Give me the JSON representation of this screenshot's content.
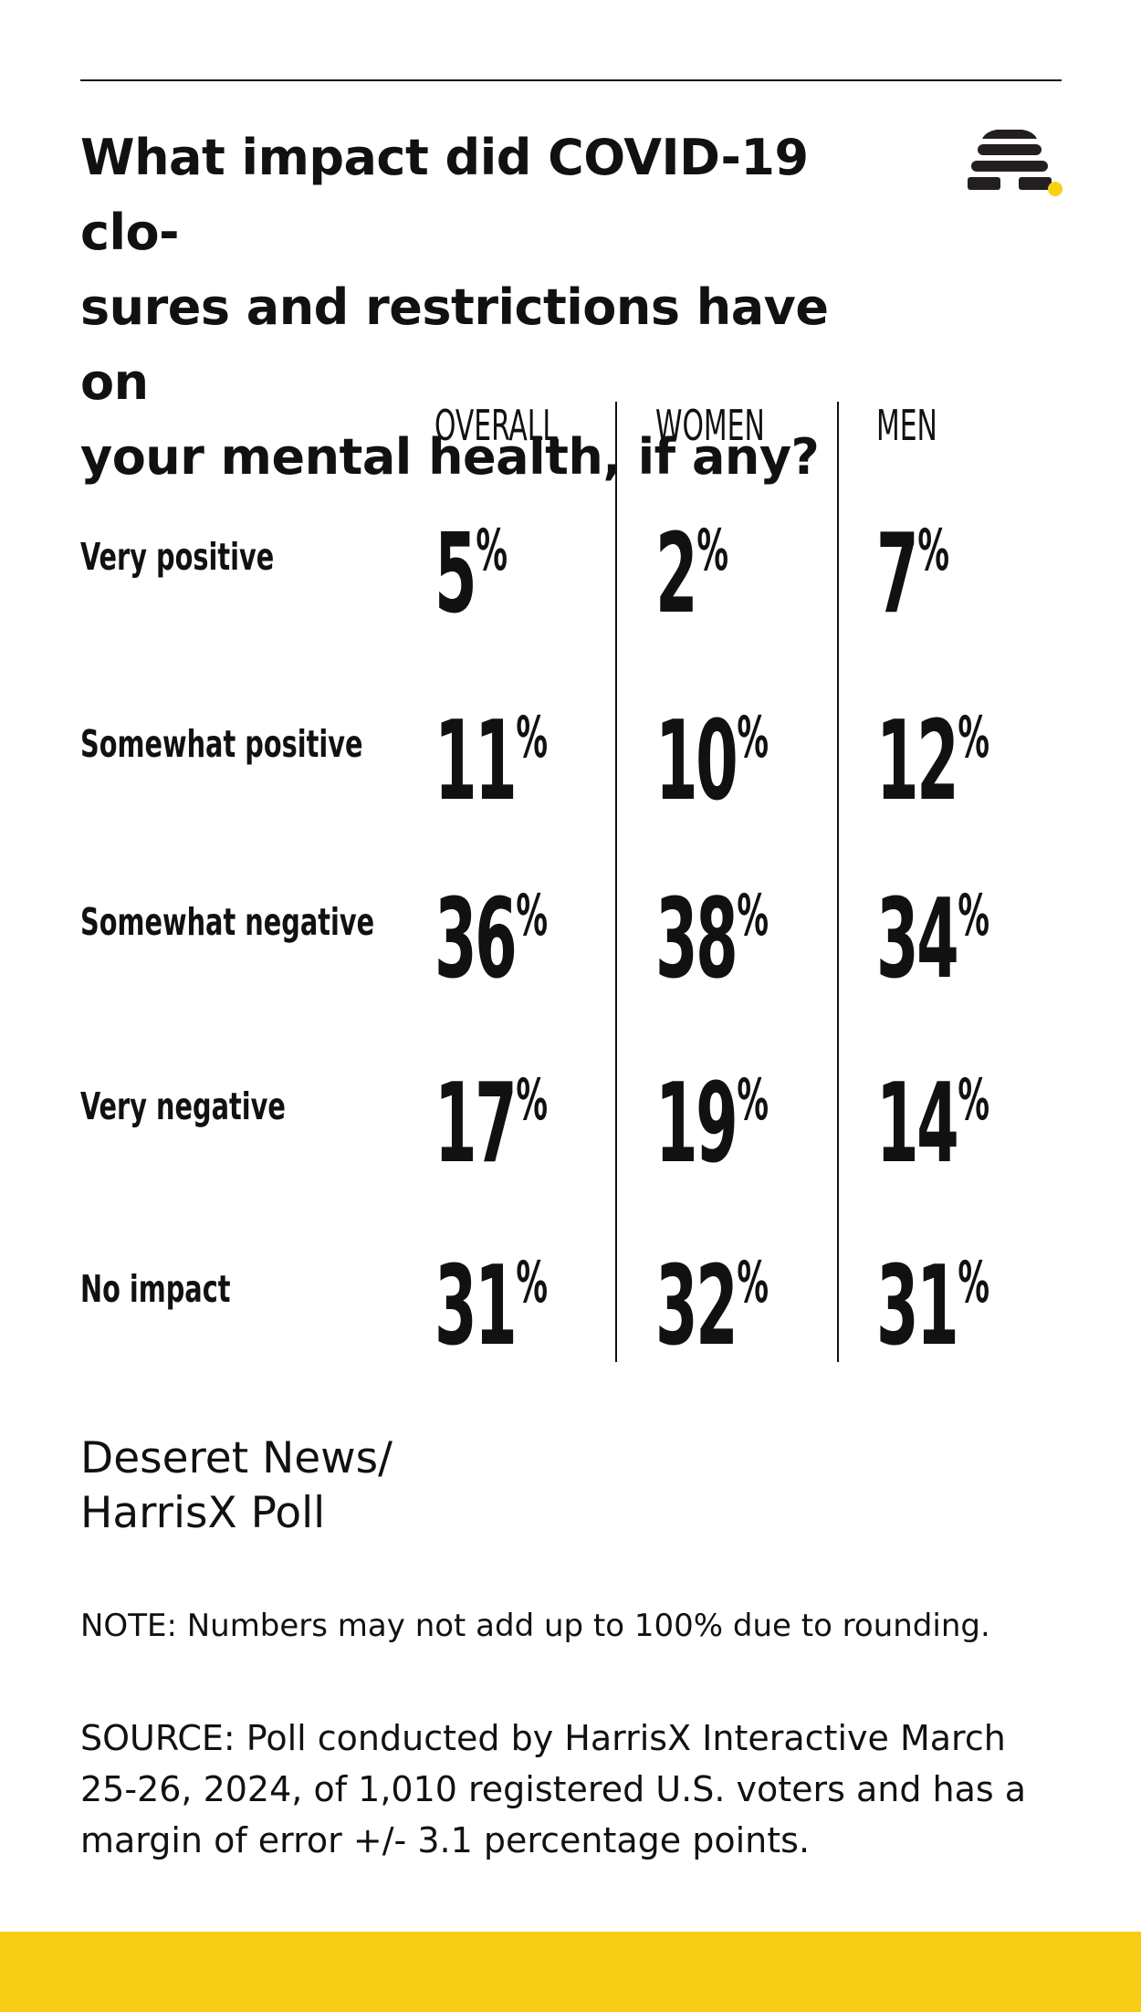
{
  "title": "What impact did COVID-19 closures and restrictions have on your mental health, if any?",
  "title_lines": [
    "What impact did COVID-19 clo-",
    "sures and restrictions have on",
    "your mental health, if any?"
  ],
  "logo": {
    "icon": "beehive-icon",
    "color": "#231f20",
    "dot_color": "#f7d117"
  },
  "chart_data": {
    "type": "table",
    "title": "What impact did COVID-19 closures and restrictions have on your mental health, if any?",
    "unit": "%",
    "columns": [
      "OVERALL",
      "WOMEN",
      "MEN"
    ],
    "rows": [
      {
        "label": "Very positive",
        "values": [
          5,
          2,
          7
        ]
      },
      {
        "label": "Somewhat positive",
        "values": [
          11,
          10,
          12
        ]
      },
      {
        "label": "Somewhat negative",
        "values": [
          36,
          38,
          34
        ]
      },
      {
        "label": "Very negative",
        "values": [
          17,
          19,
          14
        ]
      },
      {
        "label": "No impact",
        "values": [
          31,
          32,
          31
        ]
      }
    ]
  },
  "source_name_lines": [
    "Deseret News/",
    "HarrisX Poll"
  ],
  "note": "NOTE: Numbers may not add up to 100% due to rounding.",
  "source_lines": [
    "SOURCE: Poll conducted by HarrisX Interactive March",
    "25-26, 2024, of 1,010 registered U.S. voters and has a",
    "margin of error +/- 3.1 percentage points."
  ],
  "colors": {
    "text": "#111111",
    "footer": "#f7ce15",
    "background": "#ffffff"
  }
}
